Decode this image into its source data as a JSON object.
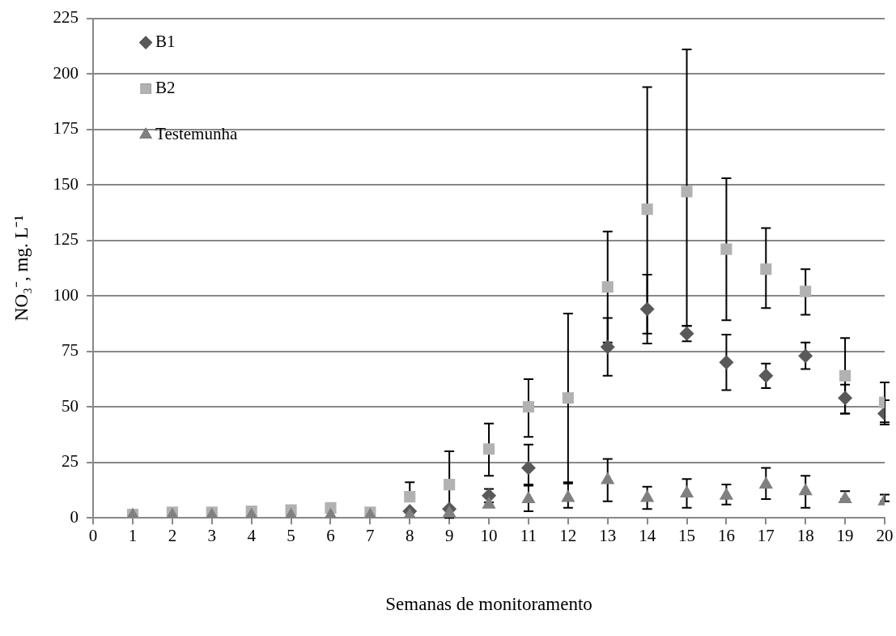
{
  "chart_data": {
    "type": "scatter",
    "xlabel": "Semanas de monitoramento",
    "ylabel": "NO₃⁻, mg. L⁻¹",
    "x": [
      1,
      2,
      3,
      4,
      5,
      6,
      7,
      8,
      9,
      10,
      11,
      12,
      13,
      14,
      15,
      16,
      17,
      18,
      19,
      20
    ],
    "xlim": [
      0,
      20
    ],
    "xticks": [
      0,
      1,
      2,
      3,
      4,
      5,
      6,
      7,
      8,
      9,
      10,
      11,
      12,
      13,
      14,
      15,
      16,
      17,
      18,
      19,
      20
    ],
    "ylim": [
      0,
      225
    ],
    "yticks": [
      0,
      25,
      50,
      75,
      100,
      125,
      150,
      175,
      200,
      225
    ],
    "grid": "y",
    "legend": "top left",
    "series": [
      {
        "name": "B1",
        "color": "#595959",
        "marker": "diamond",
        "values": [
          null,
          null,
          null,
          null,
          null,
          null,
          null,
          3,
          4,
          10,
          22.5,
          null,
          77,
          94,
          83,
          70,
          64,
          73,
          54,
          47
        ],
        "errors": [
          null,
          null,
          null,
          null,
          null,
          null,
          null,
          null,
          null,
          [
            7,
            13
          ],
          [
            14.5,
            33
          ],
          null,
          [
            64,
            90
          ],
          [
            78.5,
            109.5
          ],
          [
            79.5,
            86.5
          ],
          [
            57.5,
            82.5
          ],
          [
            58.5,
            69.5
          ],
          [
            67,
            79
          ],
          [
            47,
            60
          ],
          [
            42,
            53
          ]
        ]
      },
      {
        "name": "B2",
        "color": "#b2b2b2",
        "marker": "square",
        "values": [
          1.5,
          2.5,
          2.5,
          3,
          3.5,
          4.5,
          2.5,
          9.5,
          15,
          31,
          50,
          54,
          104,
          139,
          147,
          121,
          112,
          102,
          64,
          52
        ],
        "errors": [
          null,
          null,
          null,
          null,
          null,
          null,
          null,
          [
            9.5,
            16
          ],
          [
            0,
            30
          ],
          [
            19,
            42.5
          ],
          [
            36.5,
            62.5
          ],
          [
            15.5,
            92
          ],
          [
            79,
            129
          ],
          [
            83,
            194
          ],
          [
            86.5,
            211
          ],
          [
            89,
            153
          ],
          [
            94.5,
            130.5
          ],
          [
            91.5,
            112
          ],
          [
            47,
            81
          ],
          [
            43,
            61
          ]
        ]
      },
      {
        "name": "Testemunha",
        "color": "#808080",
        "marker": "triangle",
        "values": [
          1,
          1,
          1,
          1,
          1,
          1,
          1,
          1,
          2,
          6,
          8.5,
          9,
          17,
          9,
          11,
          10,
          15,
          12,
          8.5,
          7.5
        ],
        "errors": [
          null,
          null,
          null,
          null,
          null,
          null,
          null,
          null,
          null,
          null,
          [
            3,
            15
          ],
          [
            4.5,
            16
          ],
          [
            7.5,
            26.5
          ],
          [
            4,
            14
          ],
          [
            4.5,
            17.5
          ],
          [
            6,
            15
          ],
          [
            8.5,
            22.5
          ],
          [
            4.5,
            19
          ],
          [
            8.5,
            12
          ],
          [
            7.5,
            10.5
          ]
        ]
      }
    ]
  }
}
